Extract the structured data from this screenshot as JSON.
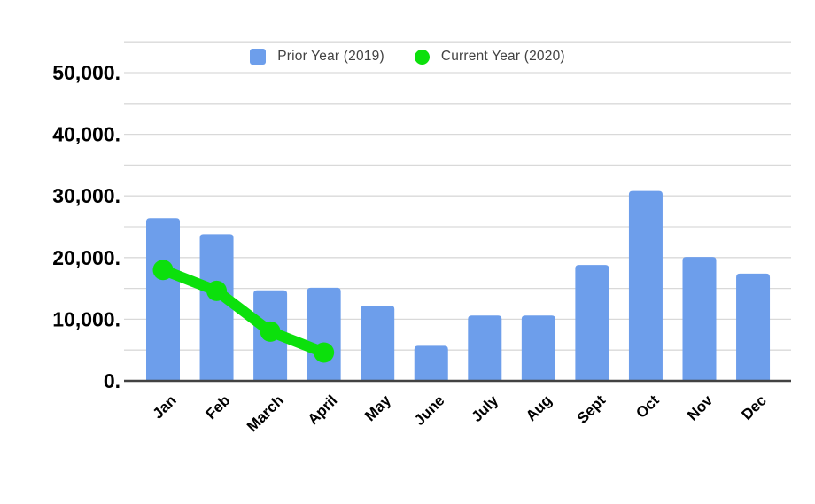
{
  "chart_data": {
    "type": "bar",
    "subtype": "combo-bar-line",
    "title": "",
    "xlabel": "",
    "ylabel": "",
    "grid": true,
    "legend_position": "top",
    "categories": [
      "Jan",
      "Feb",
      "March",
      "April",
      "May",
      "June",
      "July",
      "Aug",
      "Sept",
      "Oct",
      "Nov",
      "Dec"
    ],
    "series": [
      {
        "name": "Prior Year (2019)",
        "type": "bar",
        "color": "#6d9eeb",
        "values": [
          26400,
          23800,
          14700,
          15100,
          12200,
          5700,
          10600,
          10600,
          18800,
          30800,
          20100,
          17400
        ]
      },
      {
        "name": "Current Year (2020)",
        "type": "line",
        "color": "#0ce00c",
        "values": [
          18000,
          14600,
          8000,
          4600,
          null,
          null,
          null,
          null,
          null,
          null,
          null,
          null
        ]
      }
    ],
    "y_axis": {
      "min": 0,
      "max": 50000,
      "grid_top": 55000,
      "grid_step": 5000,
      "label_step": 10000,
      "tick_labels": [
        "0.",
        "10,000.",
        "20,000.",
        "30,000.",
        "40,000.",
        "50,000."
      ]
    }
  },
  "colors": {
    "bar_fill": "#6d9eeb",
    "line_stroke": "#0ce00c",
    "gridline": "#d9d9d9",
    "axis_line": "#424242",
    "tick_text": "#000000",
    "legend_text": "#424242",
    "background": "#ffffff"
  }
}
